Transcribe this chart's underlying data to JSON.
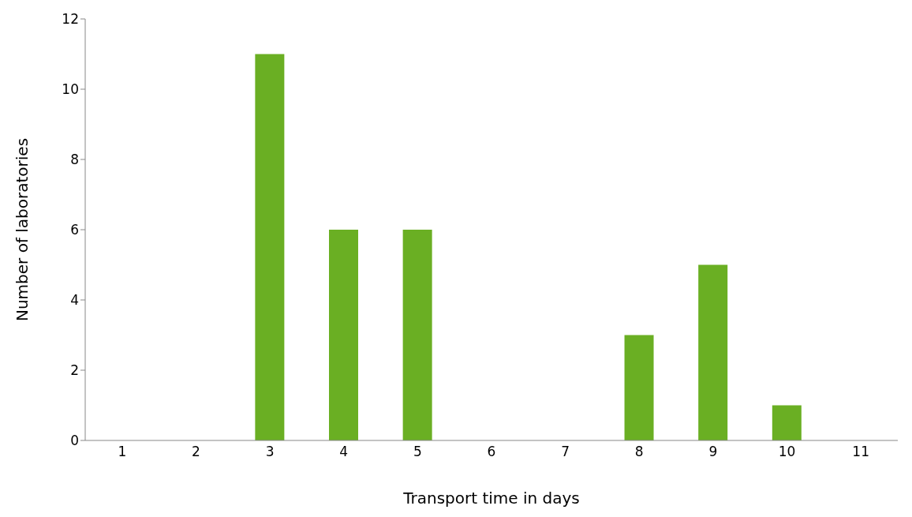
{
  "chart_data": {
    "type": "bar",
    "xlabel": "Transport time in days",
    "ylabel": "Number of laboratories",
    "categories": [
      "1",
      "2",
      "3",
      "4",
      "5",
      "6",
      "7",
      "8",
      "9",
      "10",
      "11"
    ],
    "values": [
      0,
      0,
      11,
      6,
      6,
      0,
      0,
      3,
      5,
      1,
      0
    ],
    "color": "#6aaf23",
    "ylim": [
      0,
      12
    ],
    "yticks": [
      0,
      2,
      4,
      6,
      8,
      10,
      12
    ],
    "grid": false,
    "legend": false
  }
}
